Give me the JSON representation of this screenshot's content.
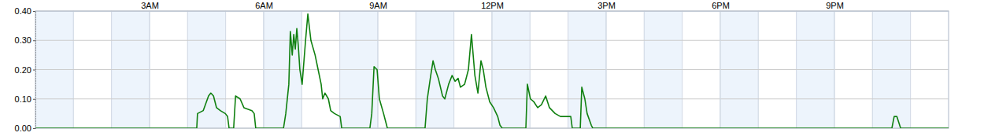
{
  "chart_data": {
    "type": "line",
    "x": [
      0,
      4.24,
      4.26,
      4.41,
      4.55,
      4.61,
      4.68,
      4.76,
      4.86,
      4.99,
      5.05,
      5.09,
      5.21,
      5.26,
      5.38,
      5.48,
      5.69,
      5.75,
      5.79,
      6.52,
      6.58,
      6.66,
      6.7,
      6.75,
      6.79,
      6.83,
      6.87,
      6.91,
      6.95,
      7.01,
      7.1,
      7.16,
      7.24,
      7.35,
      7.43,
      7.51,
      7.55,
      7.61,
      7.7,
      7.76,
      7.86,
      8.01,
      8.05,
      8.79,
      8.84,
      8.9,
      8.98,
      9.04,
      9.15,
      9.21,
      9.25,
      10.24,
      10.3,
      10.39,
      10.45,
      10.51,
      10.59,
      10.7,
      10.76,
      10.86,
      10.95,
      11.03,
      11.11,
      11.17,
      11.28,
      11.38,
      11.46,
      11.55,
      11.63,
      11.71,
      11.77,
      11.84,
      11.94,
      12.04,
      12.15,
      12.21,
      12.27,
      12.89,
      12.93,
      13.01,
      13.1,
      13.2,
      13.3,
      13.41,
      13.51,
      13.66,
      13.8,
      14.07,
      14.11,
      14.32,
      14.36,
      14.44,
      14.5,
      14.61,
      14.65,
      22.51,
      22.57,
      22.64,
      22.74,
      24
    ],
    "values": [
      0,
      0,
      0.05,
      0.06,
      0.11,
      0.12,
      0.11,
      0.07,
      0.06,
      0.05,
      0.04,
      0,
      0,
      0.11,
      0.1,
      0.07,
      0.06,
      0.05,
      0,
      0,
      0.05,
      0.15,
      0.33,
      0.25,
      0.32,
      0.27,
      0.34,
      0.28,
      0.2,
      0.15,
      0.3,
      0.39,
      0.3,
      0.25,
      0.2,
      0.15,
      0.1,
      0.12,
      0.1,
      0.06,
      0.05,
      0.04,
      0,
      0,
      0.05,
      0.21,
      0.2,
      0.1,
      0.05,
      0.02,
      0,
      0,
      0.1,
      0.18,
      0.23,
      0.2,
      0.17,
      0.11,
      0.1,
      0.15,
      0.18,
      0.16,
      0.17,
      0.14,
      0.15,
      0.2,
      0.32,
      0.18,
      0.12,
      0.23,
      0.2,
      0.14,
      0.09,
      0.07,
      0.04,
      0.01,
      0,
      0,
      0.15,
      0.1,
      0.09,
      0.07,
      0.08,
      0.11,
      0.07,
      0.05,
      0.04,
      0.04,
      0,
      0,
      0.14,
      0.1,
      0.05,
      0.01,
      0,
      0,
      0.04,
      0.04,
      0,
      0
    ],
    "color": "#108010",
    "xlim": [
      0,
      24
    ],
    "xticks": [
      {
        "value": 3,
        "label": "3AM"
      },
      {
        "value": 6,
        "label": "6AM"
      },
      {
        "value": 9,
        "label": "9AM"
      },
      {
        "value": 12,
        "label": "12PM"
      },
      {
        "value": 15,
        "label": "3PM"
      },
      {
        "value": 18,
        "label": "6PM"
      },
      {
        "value": 21,
        "label": "9PM"
      }
    ],
    "ylim": [
      0,
      0.4
    ],
    "yticks": [
      {
        "value": 0,
        "label": "0.00"
      },
      {
        "value": 0.1,
        "label": "0.10"
      },
      {
        "value": 0.2,
        "label": "0.20"
      },
      {
        "value": 0.3,
        "label": "0.30"
      },
      {
        "value": 0.4,
        "label": "0.40"
      }
    ],
    "grid": true
  }
}
